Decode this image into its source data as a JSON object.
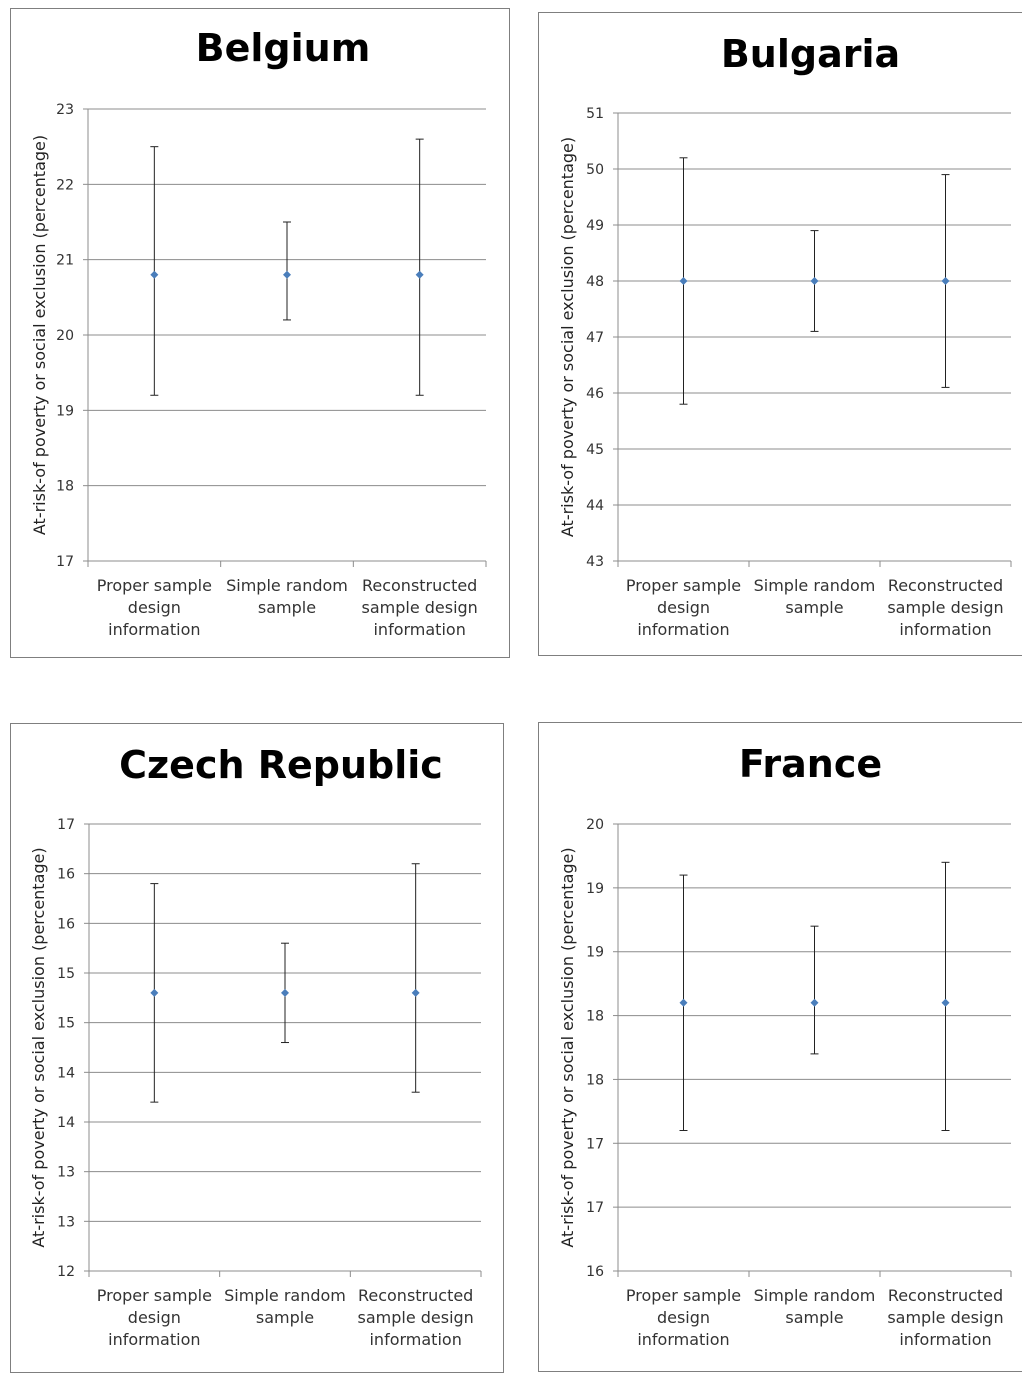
{
  "chart_data": [
    {
      "type": "scatter",
      "title": "Belgium",
      "ylabel": "At-risk-of poverty or social exclusion (percentage)",
      "categories": [
        "Proper sample design information",
        "Simple random sample",
        "Reconstructed sample design information"
      ],
      "category_lines": [
        [
          "Proper sample",
          "design",
          "information"
        ],
        [
          "Simple random",
          "sample"
        ],
        [
          "Reconstructed",
          "sample design",
          "information"
        ]
      ],
      "yticks": [
        "17",
        "18",
        "19",
        "20",
        "21",
        "22",
        "23"
      ],
      "ylim": [
        17,
        23
      ],
      "values": [
        20.8,
        20.8,
        20.8
      ],
      "error_low": [
        19.2,
        20.2,
        19.2
      ],
      "error_high": [
        22.5,
        21.5,
        22.6
      ],
      "grid": true,
      "point_color": "#4a7ebb"
    },
    {
      "type": "scatter",
      "title": "Bulgaria",
      "ylabel": "At-risk-of poverty or social exclusion (percentage)",
      "categories": [
        "Proper sample design information",
        "Simple random sample",
        "Reconstructed sample design information"
      ],
      "category_lines": [
        [
          "Proper sample",
          "design",
          "information"
        ],
        [
          "Simple random",
          "sample"
        ],
        [
          "Reconstructed",
          "sample design",
          "information"
        ]
      ],
      "yticks": [
        "43",
        "44",
        "45",
        "46",
        "47",
        "48",
        "49",
        "50",
        "51"
      ],
      "ylim": [
        43,
        51
      ],
      "values": [
        48.0,
        48.0,
        48.0
      ],
      "error_low": [
        45.8,
        47.1,
        46.1
      ],
      "error_high": [
        50.2,
        48.9,
        49.9
      ],
      "grid": true,
      "point_color": "#4a7ebb"
    },
    {
      "type": "scatter",
      "title": "Czech Republic",
      "ylabel": "At-risk-of poverty or social exclusion (percentage)",
      "categories": [
        "Proper sample design information",
        "Simple random sample",
        "Reconstructed sample design information"
      ],
      "category_lines": [
        [
          "Proper sample",
          "design",
          "information"
        ],
        [
          "Simple random",
          "sample"
        ],
        [
          "Reconstructed",
          "sample design",
          "information"
        ]
      ],
      "yticks": [
        "12",
        "13",
        "13",
        "14",
        "14",
        "15",
        "15",
        "16",
        "16",
        "17"
      ],
      "ylim": [
        12,
        16.5
      ],
      "values": [
        14.8,
        14.8,
        14.8
      ],
      "error_low": [
        13.7,
        14.3,
        13.8
      ],
      "error_high": [
        15.9,
        15.3,
        16.1
      ],
      "grid": true,
      "point_color": "#4a7ebb"
    },
    {
      "type": "scatter",
      "title": "France",
      "ylabel": "At-risk-of poverty or social exclusion (percentage)",
      "categories": [
        "Proper sample design information",
        "Simple random sample",
        "Reconstructed sample design information"
      ],
      "category_lines": [
        [
          "Proper sample",
          "design",
          "information"
        ],
        [
          "Simple random",
          "sample"
        ],
        [
          "Reconstructed",
          "sample design",
          "information"
        ]
      ],
      "yticks": [
        "16",
        "17",
        "17",
        "18",
        "18",
        "19",
        "19",
        "20"
      ],
      "ylim": [
        16,
        19.5
      ],
      "values": [
        18.1,
        18.1,
        18.1
      ],
      "error_low": [
        17.1,
        17.7,
        17.1
      ],
      "error_high": [
        19.1,
        18.7,
        19.2
      ],
      "grid": true,
      "point_color": "#4a7ebb"
    }
  ]
}
